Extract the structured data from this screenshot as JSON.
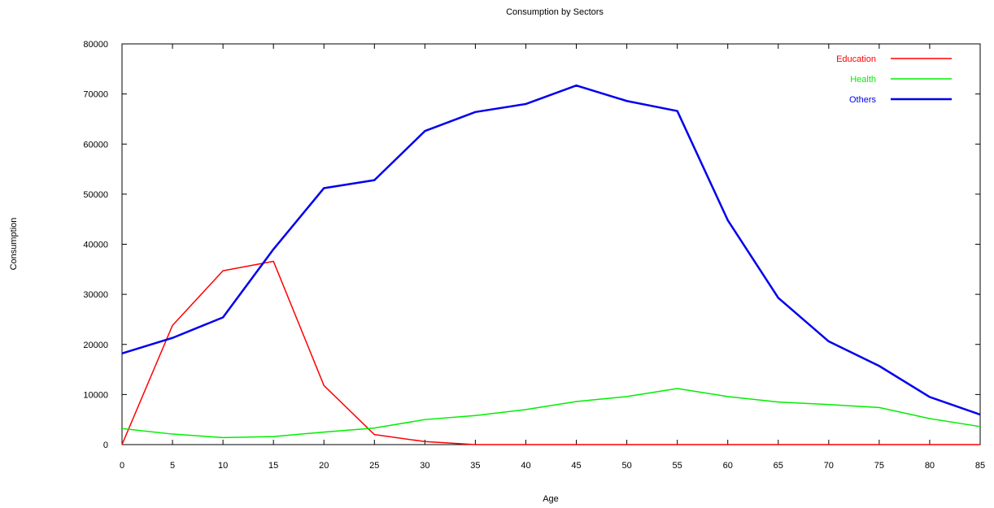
{
  "chart_data": {
    "type": "line",
    "title": "Consumption by Sectors",
    "xlabel": "Age",
    "ylabel": "Consumption",
    "xlim": [
      0,
      85
    ],
    "ylim": [
      0,
      80000
    ],
    "x_ticks": [
      0,
      5,
      10,
      15,
      20,
      25,
      30,
      35,
      40,
      45,
      50,
      55,
      60,
      65,
      70,
      75,
      80,
      85
    ],
    "y_ticks": [
      0,
      10000,
      20000,
      30000,
      40000,
      50000,
      60000,
      70000,
      80000
    ],
    "grid": false,
    "legend_position": "top-right",
    "x": [
      0,
      5,
      10,
      15,
      20,
      25,
      30,
      35,
      40,
      45,
      50,
      55,
      60,
      65,
      70,
      75,
      80,
      85
    ],
    "series": [
      {
        "name": "Education",
        "color": "#ff0000",
        "values": [
          0,
          23800,
          34700,
          36600,
          11800,
          2000,
          600,
          0,
          0,
          0,
          0,
          0,
          0,
          0,
          0,
          0,
          0,
          0
        ]
      },
      {
        "name": "Health",
        "color": "#00ee00",
        "values": [
          3200,
          2100,
          1400,
          1600,
          2500,
          3300,
          5000,
          5800,
          7000,
          8600,
          9600,
          11200,
          9600,
          8500,
          8000,
          7400,
          5200,
          3600
        ]
      },
      {
        "name": "Others",
        "color": "#0000ee",
        "values": [
          18200,
          21300,
          25400,
          39000,
          51200,
          52800,
          62600,
          66400,
          68000,
          71700,
          68600,
          66600,
          44800,
          29300,
          20600,
          15700,
          9500,
          6000
        ]
      }
    ]
  }
}
